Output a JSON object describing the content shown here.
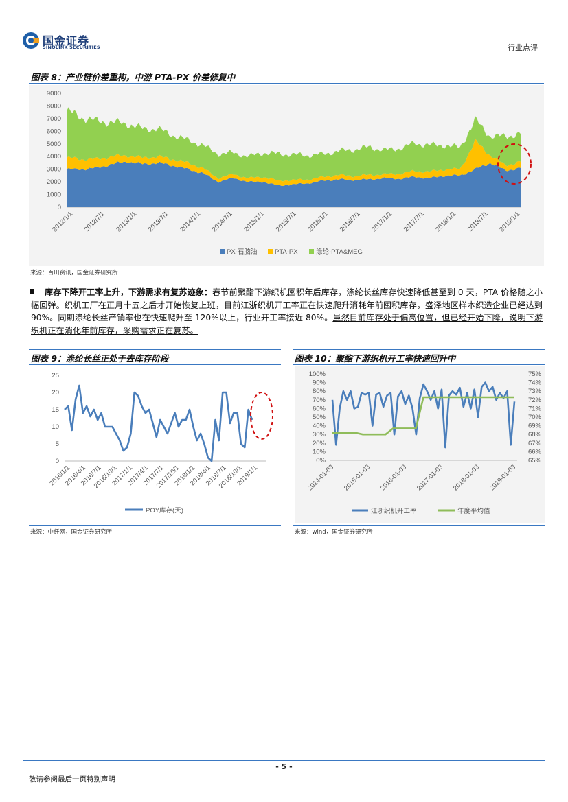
{
  "header": {
    "logo_cn": "国金证券",
    "logo_en": "SINOLINK SECURITIES",
    "doc_type": "行业点评"
  },
  "fig8": {
    "title": "图表 8：产业链价差重构，中游 PTA-PX 价差修复中",
    "source": "来源：百川资讯，国金证券研究所",
    "chart_data": {
      "type": "area",
      "stacked": true,
      "title": "",
      "ylim": [
        0,
        9000
      ],
      "yticks": [
        0,
        1000,
        2000,
        3000,
        4000,
        5000,
        6000,
        7000,
        8000,
        9000
      ],
      "xlabels": [
        "2012/1/1",
        "2012/7/1",
        "2013/1/1",
        "2013/7/1",
        "2014/1/1",
        "2014/7/1",
        "2015/1/1",
        "2015/7/1",
        "2016/1/1",
        "2016/7/1",
        "2017/1/1",
        "2017/7/1",
        "2018/1/1",
        "2018/7/1",
        "2019/1/1"
      ],
      "x": [
        "2012/1/1",
        "2012/4/1",
        "2012/7/1",
        "2012/10/1",
        "2013/1/1",
        "2013/4/1",
        "2013/7/1",
        "2013/10/1",
        "2014/1/1",
        "2014/4/1",
        "2014/7/1",
        "2014/10/1",
        "2015/1/1",
        "2015/4/1",
        "2015/7/1",
        "2015/10/1",
        "2016/1/1",
        "2016/4/1",
        "2016/7/1",
        "2016/10/1",
        "2017/1/1",
        "2017/4/1",
        "2017/7/1",
        "2017/10/1",
        "2018/1/1",
        "2018/4/1",
        "2018/7/1",
        "2018/8/1",
        "2018/10/1",
        "2019/1/1",
        "2019/3/1"
      ],
      "series": [
        {
          "name": "PX-石脑油",
          "color": "#4a7ebb",
          "values": [
            3000,
            3000,
            3100,
            3400,
            3600,
            3400,
            3500,
            3300,
            3000,
            2700,
            2000,
            2300,
            2000,
            2000,
            1700,
            1800,
            1900,
            2100,
            2200,
            2150,
            2200,
            2300,
            2250,
            2400,
            2300,
            2500,
            2500,
            3000,
            3500,
            2900,
            3100
          ]
        },
        {
          "name": "PTA-PX",
          "color": "#ffc000",
          "values": [
            900,
            800,
            700,
            600,
            500,
            500,
            500,
            500,
            500,
            400,
            300,
            300,
            300,
            400,
            400,
            350,
            300,
            300,
            350,
            300,
            350,
            300,
            400,
            450,
            500,
            500,
            500,
            2200,
            600,
            400,
            500
          ]
        },
        {
          "name": "涤纶-PTA&MEG",
          "color": "#92d050",
          "values": [
            3700,
            3300,
            3000,
            2700,
            2500,
            2300,
            2200,
            1900,
            1800,
            1800,
            1900,
            1700,
            1700,
            1900,
            2100,
            2000,
            1900,
            1800,
            1900,
            2100,
            2200,
            1900,
            2000,
            2200,
            2100,
            1900,
            1700,
            1700,
            1500,
            2300,
            2200
          ]
        }
      ]
    }
  },
  "paragraph": {
    "lead": "库存下降开工率上升，下游需求有复苏迹象：",
    "body": "春节前聚酯下游织机囤积年后库存，涤纶长丝库存快速降低甚至到 0 天，PTA 价格随之小幅回弹。织机工厂在正月十五之后才开始恢复上班，目前江浙织机开工率正在快速爬升消耗年前囤积库存，盛泽地区样本织造企业已经达到 90%。同期涤纶长丝产销率也在快速爬升至 120%以上，行业开工率接近 80%。",
    "underlined": "虽然目前库存处于偏高位置，但已经开始下降，说明下游织机正在消化年前库存，采购需求正在复苏。"
  },
  "fig9": {
    "title": "图表 9：涤纶长丝正处于去库存阶段",
    "source": "来源：中纤网，国金证券研究所",
    "chart_data": {
      "type": "line",
      "ylim": [
        0,
        25
      ],
      "yticks": [
        0,
        5,
        10,
        15,
        20,
        25
      ],
      "xlabels": [
        "2016/1/1",
        "2016/4/1",
        "2016/7/1",
        "2016/10/1",
        "2017/1/1",
        "2017/4/1",
        "2017/7/1",
        "2017/10/1",
        "2018/1/1",
        "2018/4/1",
        "2018/7/1",
        "2018/10/1",
        "2019/1/1"
      ],
      "series": [
        {
          "name": "POY库存(天)",
          "color": "#4a7ebb",
          "values": [
            15,
            16,
            9,
            18,
            22,
            14,
            16,
            13,
            15,
            12,
            14,
            10,
            10,
            10,
            8,
            6,
            3,
            4,
            8,
            20,
            19,
            16,
            14,
            15,
            11,
            7,
            12,
            10,
            8,
            11,
            14,
            10,
            12,
            12,
            15,
            10,
            6,
            8,
            5,
            1,
            0,
            12,
            6,
            20,
            20,
            11,
            14,
            14,
            5,
            4,
            15,
            12
          ]
        }
      ]
    }
  },
  "fig10": {
    "title": "图表 10：聚酯下游织机开工率快速回升中",
    "source": "来源：wind，国金证券研究所",
    "chart_data": {
      "type": "line",
      "dual_axis": true,
      "ylim_left": [
        0,
        100
      ],
      "yticks_left": [
        "0%",
        "10%",
        "20%",
        "30%",
        "40%",
        "50%",
        "60%",
        "70%",
        "80%",
        "90%",
        "100%"
      ],
      "ylim_right": [
        65,
        75
      ],
      "yticks_right": [
        "65%",
        "66%",
        "67%",
        "68%",
        "69%",
        "70%",
        "71%",
        "72%",
        "73%",
        "74%",
        "75%"
      ],
      "xlabels": [
        "2014-01-03",
        "2015-01-03",
        "2016-01-03",
        "2017-01-03",
        "2018-01-03",
        "2019-01-03"
      ],
      "series": [
        {
          "name": "江浙织机开工率",
          "color": "#4a7ebb",
          "axis": "left",
          "values": [
            70,
            18,
            60,
            80,
            70,
            80,
            60,
            62,
            78,
            76,
            78,
            40,
            76,
            78,
            62,
            75,
            78,
            30,
            74,
            80,
            65,
            75,
            60,
            30,
            72,
            88,
            80,
            70,
            80,
            60,
            82,
            15,
            75,
            80,
            76,
            84,
            62,
            78,
            60,
            82,
            50,
            85,
            90,
            80,
            85,
            70,
            78,
            72,
            80,
            18,
            68
          ]
        },
        {
          "name": "年度平均值",
          "color": "#8fbc5a",
          "axis": "right",
          "values": [
            68.2,
            68.2,
            68.2,
            68.2,
            68.0,
            68.0,
            68.0,
            68.0,
            68.7,
            68.7,
            68.7,
            68.7,
            72.3,
            72.3,
            72.3,
            72.3,
            72.3,
            72.3,
            72.3,
            72.3,
            72.3,
            72.3,
            72.3,
            72.3,
            72.3
          ]
        }
      ]
    }
  },
  "footer": {
    "page": "- 5 -",
    "note": "敬请参阅最后一页特别声明"
  }
}
